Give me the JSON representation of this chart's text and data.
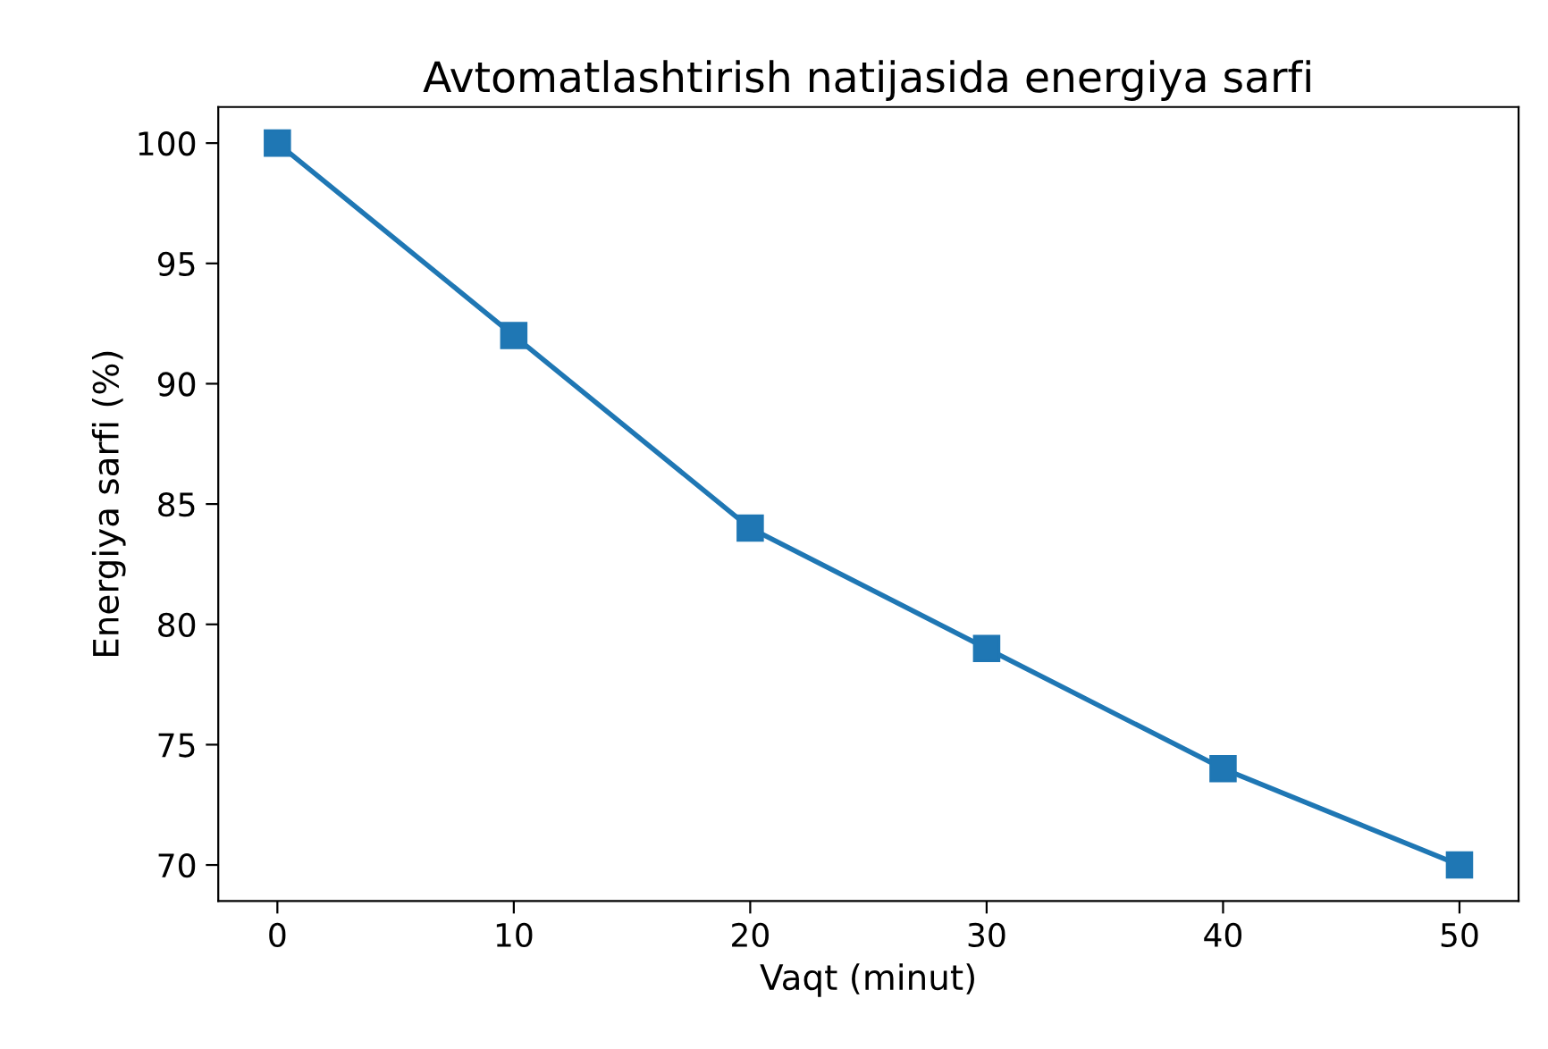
{
  "chart_data": {
    "type": "line",
    "title": "Avtomatlashtirish natijasida energiya sarfi",
    "xlabel": "Vaqt (minut)",
    "ylabel": "Energiya sarfi (%)",
    "x": [
      0,
      10,
      20,
      30,
      40,
      50
    ],
    "series": [
      {
        "color": "#1f77b4",
        "values": [
          100,
          92,
          84,
          79,
          74,
          70
        ]
      }
    ],
    "xlim": [
      -2.5,
      52.5
    ],
    "ylim": [
      68.5,
      101.5
    ],
    "xticks": [
      0,
      10,
      20,
      30,
      40,
      50
    ],
    "yticks": [
      70,
      75,
      80,
      85,
      90,
      95,
      100
    ],
    "marker": "square",
    "line_style": "solid",
    "grid": false,
    "legend": false
  }
}
